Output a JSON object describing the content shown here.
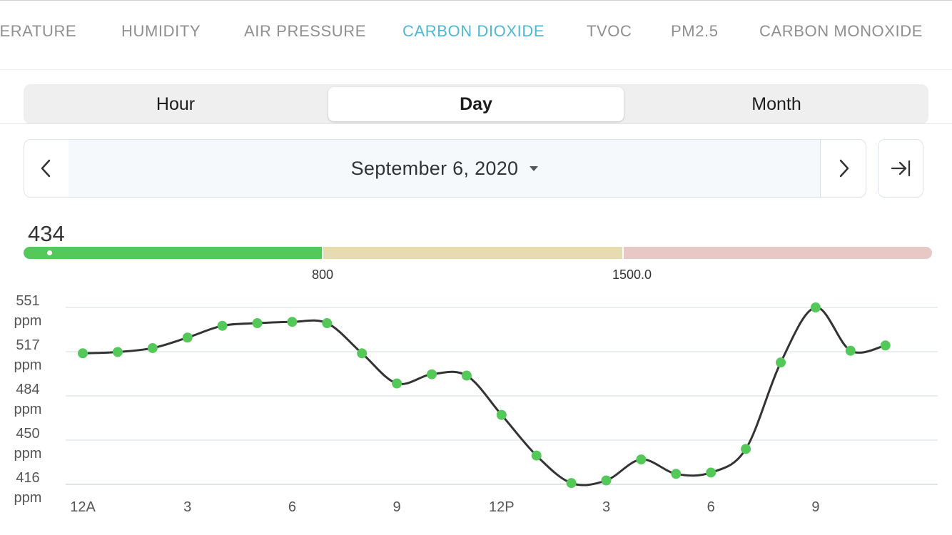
{
  "tabs": [
    {
      "label": "TEMPERATURE",
      "active": false
    },
    {
      "label": "HUMIDITY",
      "active": false
    },
    {
      "label": "AIR PRESSURE",
      "active": false
    },
    {
      "label": "CARBON DIOXIDE",
      "active": true
    },
    {
      "label": "TVOC",
      "active": false
    },
    {
      "label": "PM2.5",
      "active": false
    },
    {
      "label": "CARBON MONOXIDE",
      "active": false
    }
  ],
  "range_selector": {
    "options": [
      "Hour",
      "Day",
      "Month"
    ],
    "selected": "Day"
  },
  "date_nav": {
    "date": "September 6, 2020",
    "prev_icon": "chevron-left-icon",
    "next_icon": "chevron-right-icon",
    "latest_icon": "jump-to-latest-icon"
  },
  "current": {
    "value": "434"
  },
  "gauge": {
    "thresholds": [
      "800",
      "1500.0"
    ],
    "segments": [
      {
        "name": "good",
        "color": "#55c85a"
      },
      {
        "name": "moderate",
        "color": "#e6dcb0"
      },
      {
        "name": "poor",
        "color": "#e8c8c4"
      }
    ]
  },
  "chart_data": {
    "type": "line",
    "y_ticks": [
      {
        "value": "551",
        "unit": "ppm"
      },
      {
        "value": "517",
        "unit": "ppm"
      },
      {
        "value": "484",
        "unit": "ppm"
      },
      {
        "value": "450",
        "unit": "ppm"
      },
      {
        "value": "416",
        "unit": "ppm"
      }
    ],
    "ylim": [
      416,
      551
    ],
    "x_ticks": [
      {
        "label": "12A",
        "hour": 0
      },
      {
        "label": "3",
        "hour": 3
      },
      {
        "label": "6",
        "hour": 6
      },
      {
        "label": "9",
        "hour": 9
      },
      {
        "label": "12P",
        "hour": 12
      },
      {
        "label": "3",
        "hour": 15
      },
      {
        "label": "6",
        "hour": 18
      },
      {
        "label": "9",
        "hour": 21
      }
    ],
    "x": [
      0,
      1,
      2,
      3,
      4,
      5,
      6,
      7,
      8,
      9,
      10,
      11,
      12,
      13,
      14,
      15,
      16,
      17,
      18,
      19,
      20,
      21,
      22,
      23
    ],
    "values": [
      516,
      517,
      520,
      528,
      537,
      539,
      540,
      539,
      516,
      493,
      500,
      499,
      469,
      438,
      417,
      419,
      435,
      424,
      425,
      443,
      509,
      551,
      518,
      522
    ],
    "line_color": "#333333",
    "point_color": "#55c85a"
  }
}
